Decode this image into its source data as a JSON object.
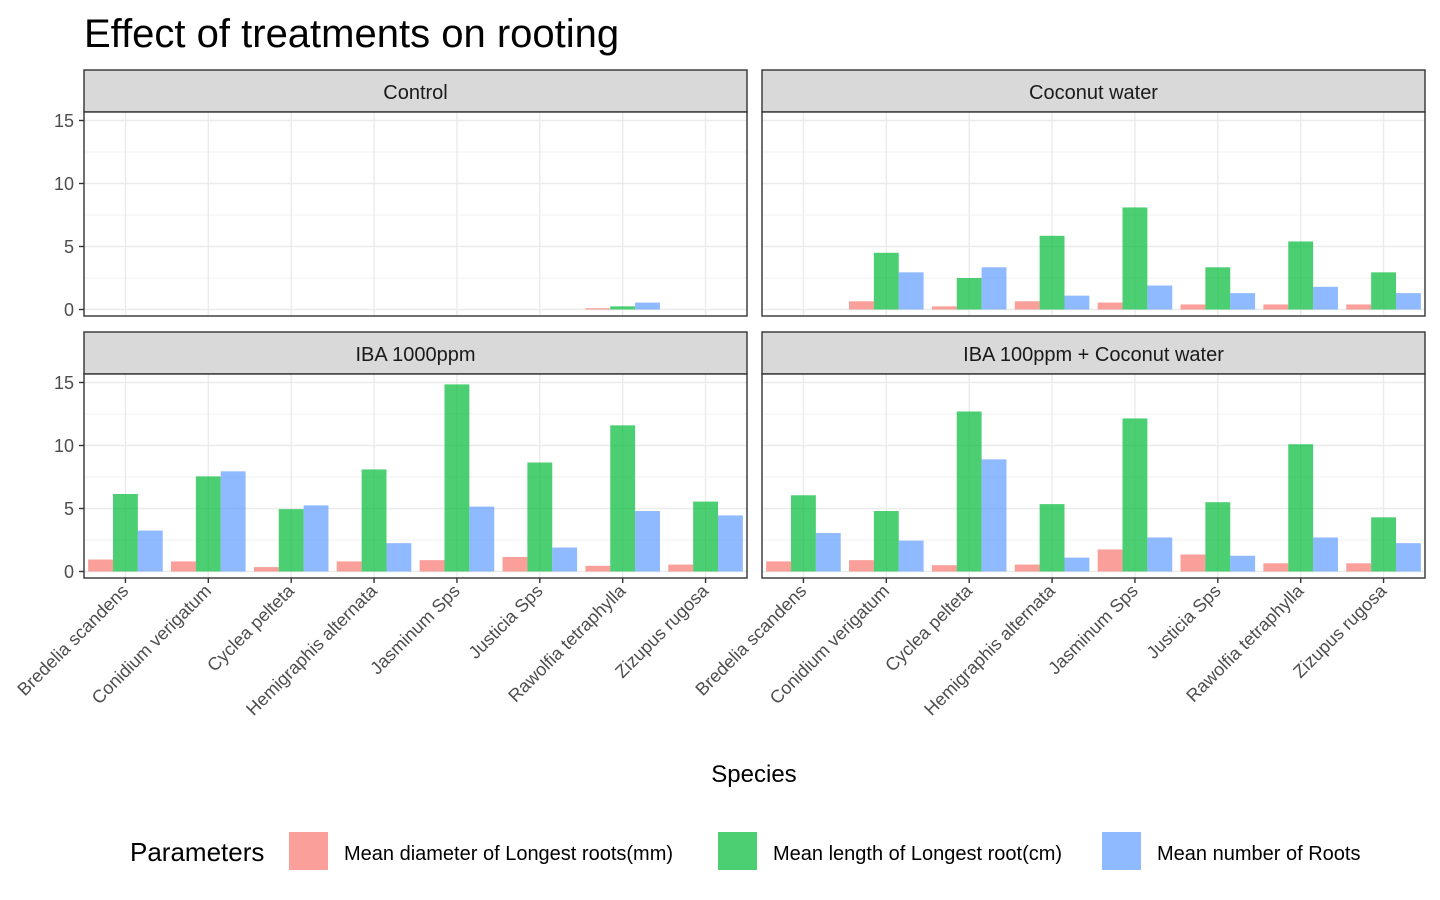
{
  "chart_data": {
    "type": "bar",
    "title": "Effect of treatments on rooting",
    "xlabel": "Species",
    "ylabel": "",
    "ylim": [
      0,
      18
    ],
    "yticks": [
      0,
      5,
      10,
      15
    ],
    "grid": true,
    "legend": {
      "title": "Parameters",
      "placement": "bottom"
    },
    "categories": [
      "Bredelia scandens",
      "Conidium verigatum",
      "Cyclea pelteta",
      "Hemigraphis alternata",
      "Jasminum Sps",
      "Justicia Sps",
      "Rawolfia tetraphylla",
      "Zizupus rugosa"
    ],
    "series": [
      {
        "name": "Mean diameter of Longest roots(mm)",
        "color": "#F8766D"
      },
      {
        "name": "Mean length of Longest root(cm)",
        "color": "#00BA38"
      },
      {
        "name": "Mean number of Roots",
        "color": "#619CFF"
      }
    ],
    "panels": [
      {
        "label": "Control",
        "values": [
          [
            0,
            0,
            0,
            0,
            0,
            0,
            0.1,
            0
          ],
          [
            0,
            0,
            0,
            0,
            0,
            0,
            0.25,
            0
          ],
          [
            0,
            0,
            0,
            0,
            0,
            0,
            0.55,
            0
          ]
        ]
      },
      {
        "label": "Coconut water",
        "values": [
          [
            0,
            0.65,
            0.25,
            0.65,
            0.55,
            0.4,
            0.4,
            0.4
          ],
          [
            0,
            4.5,
            2.5,
            5.85,
            8.1,
            3.35,
            5.4,
            2.95
          ],
          [
            0,
            2.95,
            3.35,
            1.1,
            1.9,
            1.3,
            1.8,
            1.3
          ]
        ]
      },
      {
        "label": "IBA 1000ppm",
        "values": [
          [
            0.95,
            0.8,
            0.35,
            0.8,
            0.9,
            1.15,
            0.45,
            0.55
          ],
          [
            6.15,
            7.55,
            4.95,
            8.1,
            14.85,
            8.65,
            11.6,
            5.55
          ],
          [
            3.25,
            7.95,
            5.25,
            2.25,
            5.15,
            1.9,
            4.8,
            4.45
          ]
        ]
      },
      {
        "label": "IBA 100ppm + Coconut water",
        "values": [
          [
            0.8,
            0.9,
            0.5,
            0.55,
            1.75,
            1.35,
            0.65,
            0.65
          ],
          [
            6.05,
            4.8,
            12.7,
            5.35,
            12.15,
            5.5,
            10.1,
            4.3
          ],
          [
            3.05,
            2.45,
            8.9,
            1.1,
            2.7,
            1.25,
            2.7,
            2.25
          ]
        ]
      }
    ]
  }
}
